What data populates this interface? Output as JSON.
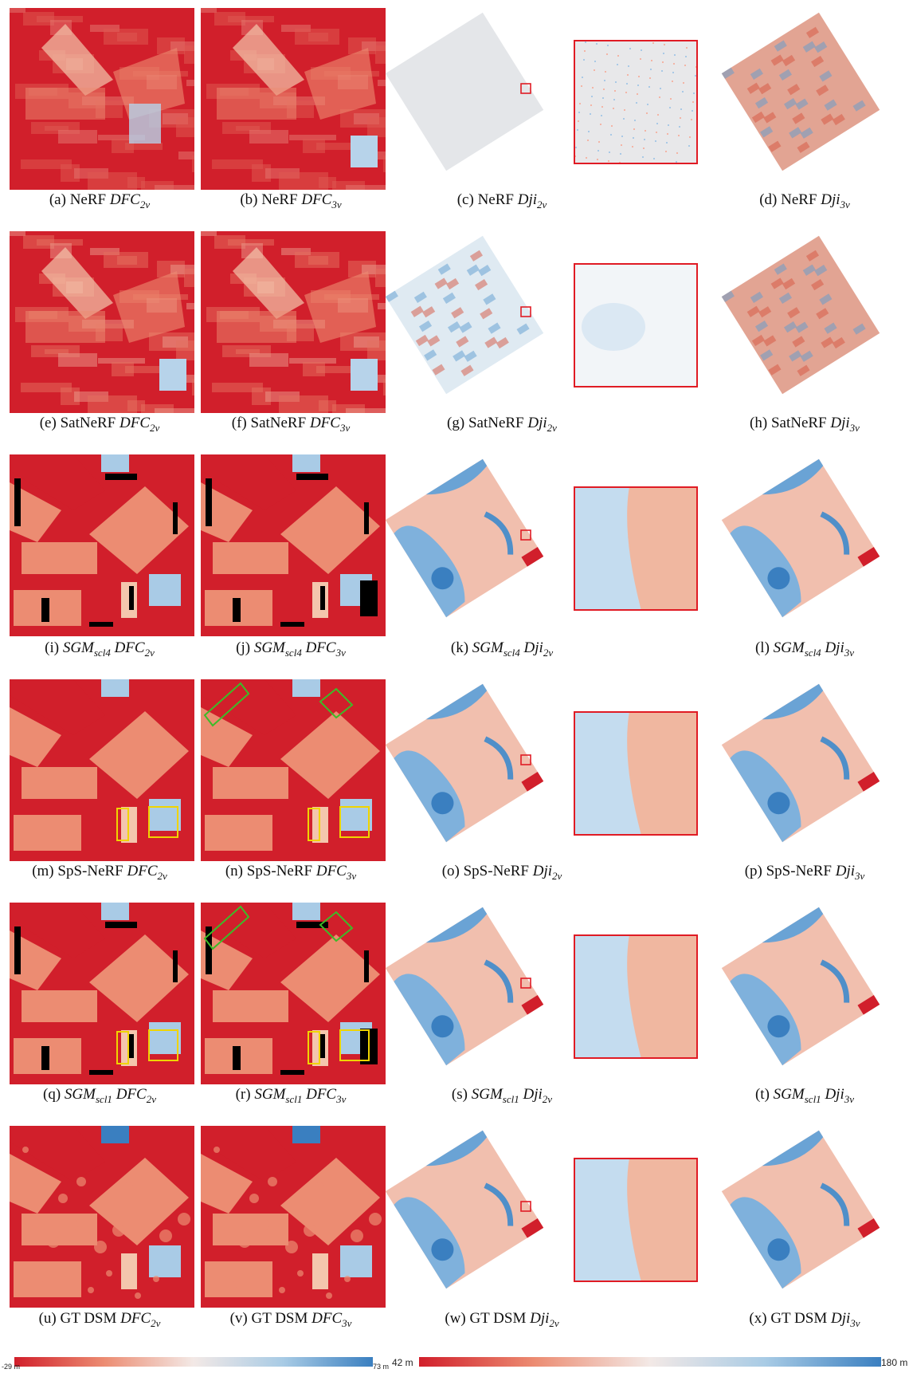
{
  "colors": {
    "dfc_high": "#d11f2b",
    "dfc_mid": "#ec8c72",
    "dfc_pale": "#f4c6ad",
    "dji_blue": "#3a7fc0",
    "dji_neutral": "#ededed",
    "roi_box": "#e01b24",
    "green_box": "#3dbb28",
    "yellow_box": "#f0d400",
    "nodata": "#000000"
  },
  "rows": [
    {
      "method": "NeRF",
      "captions": [
        {
          "letter": "(a)",
          "method": "NeRF",
          "sym": "DFC",
          "sub": "2v"
        },
        {
          "letter": "(b)",
          "method": "NeRF",
          "sym": "DFC",
          "sub": "3v"
        },
        {
          "letter": "(c)",
          "method": "NeRF",
          "sym": "Dji",
          "sub": "2v"
        },
        {
          "letter": "(d)",
          "method": "NeRF",
          "sym": "Dji",
          "sub": "3v"
        }
      ]
    },
    {
      "method": "SatNeRF",
      "captions": [
        {
          "letter": "(e)",
          "method": "SatNeRF",
          "sym": "DFC",
          "sub": "2v"
        },
        {
          "letter": "(f)",
          "method": "SatNeRF",
          "sym": "DFC",
          "sub": "3v"
        },
        {
          "letter": "(g)",
          "method": "SatNeRF",
          "sym": "Dji",
          "sub": "2v"
        },
        {
          "letter": "(h)",
          "method": "SatNeRF",
          "sym": "Dji",
          "sub": "3v"
        }
      ]
    },
    {
      "method": "SGMscl4",
      "captions": [
        {
          "letter": "(i)",
          "method": "SGM",
          "msub": "scl4",
          "sym": "DFC",
          "sub": "2v"
        },
        {
          "letter": "(j)",
          "method": "SGM",
          "msub": "scl4",
          "sym": "DFC",
          "sub": "3v"
        },
        {
          "letter": "(k)",
          "method": "SGM",
          "msub": "scl4",
          "sym": "Dji",
          "sub": "2v"
        },
        {
          "letter": "(l)",
          "method": "SGM",
          "msub": "scl4",
          "sym": "Dji",
          "sub": "3v"
        }
      ]
    },
    {
      "method": "SpS-NeRF",
      "captions": [
        {
          "letter": "(m)",
          "method": "SpS-NeRF",
          "sym": "DFC",
          "sub": "2v"
        },
        {
          "letter": "(n)",
          "method": "SpS-NeRF",
          "sym": "DFC",
          "sub": "3v"
        },
        {
          "letter": "(o)",
          "method": "SpS-NeRF",
          "sym": "Dji",
          "sub": "2v"
        },
        {
          "letter": "(p)",
          "method": "SpS-NeRF",
          "sym": "Dji",
          "sub": "3v"
        }
      ]
    },
    {
      "method": "SGMscl1",
      "captions": [
        {
          "letter": "(q)",
          "method": "SGM",
          "msub": "scl1",
          "sym": "DFC",
          "sub": "2v"
        },
        {
          "letter": "(r)",
          "method": "SGM",
          "msub": "scl1",
          "sym": "DFC",
          "sub": "3v"
        },
        {
          "letter": "(s)",
          "method": "SGM",
          "msub": "scl1",
          "sym": "Dji",
          "sub": "2v"
        },
        {
          "letter": "(t)",
          "method": "SGM",
          "msub": "scl1",
          "sym": "Dji",
          "sub": "3v"
        }
      ]
    },
    {
      "method": "GT DSM",
      "captions": [
        {
          "letter": "(u)",
          "method": "GT DSM",
          "sym": "DFC",
          "sub": "2v"
        },
        {
          "letter": "(v)",
          "method": "GT DSM",
          "sym": "DFC",
          "sub": "3v"
        },
        {
          "letter": "(w)",
          "method": "GT DSM",
          "sym": "Dji",
          "sub": "2v"
        },
        {
          "letter": "(x)",
          "method": "GT DSM",
          "sym": "Dji",
          "sub": "3v"
        }
      ]
    }
  ],
  "colorbar_dfc": {
    "min_label": "-29 m",
    "max_label": "73 m"
  },
  "colorbar_dji": {
    "min_label": "42 m",
    "max_label": "180 m"
  }
}
